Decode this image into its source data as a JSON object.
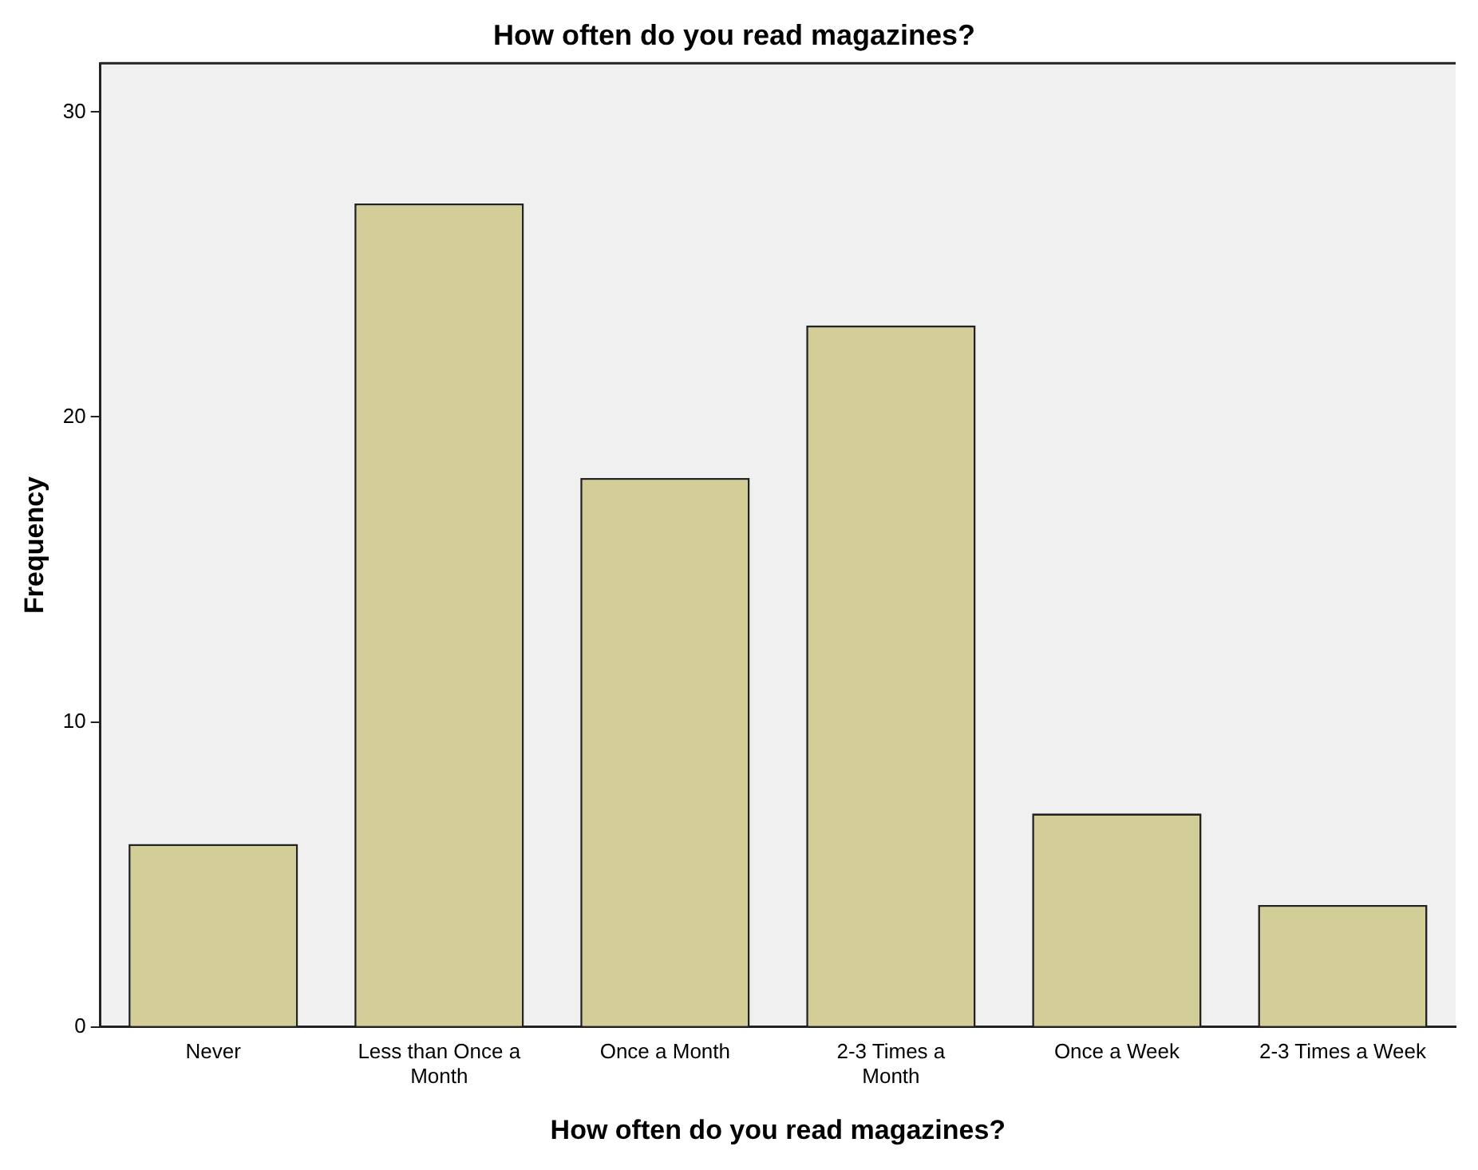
{
  "chart_data": {
    "type": "bar",
    "title": "How often do you read magazines?",
    "xlabel": "How often do you read magazines?",
    "ylabel": "Frequency",
    "categories": [
      "Never",
      "Less than Once a Month",
      "Once a Month",
      "2-3 Times a Month",
      "Once a Week",
      "2-3 Times a Week"
    ],
    "values": [
      6,
      27,
      18,
      23,
      7,
      4
    ],
    "color": "#d3ce97",
    "ylim": [
      0,
      31.6
    ],
    "yticks": [
      0,
      10,
      20,
      30
    ],
    "grid": false,
    "legend": false
  }
}
